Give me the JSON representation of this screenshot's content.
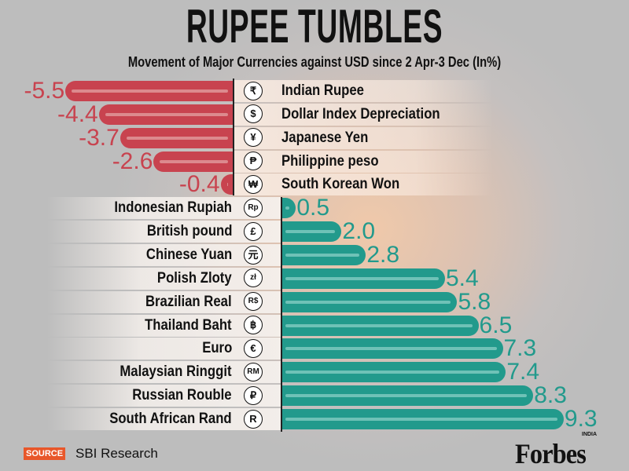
{
  "chart_data": {
    "type": "bar",
    "orientation": "horizontal",
    "title": "RUPEE TUMBLES",
    "subtitle": "Movement of Major Currencies against USD since 2 Apr-3 Dec (In%)",
    "categories": [
      "Indian Rupee",
      "Dollar Index Depreciation",
      "Japanese Yen",
      "Philippine peso",
      "South Korean Won",
      "Indonesian Rupiah",
      "British pound",
      "Chinese Yuan",
      "Polish Zloty",
      "Brazilian Real",
      "Thailand Baht",
      "Euro",
      "Malaysian Ringgit",
      "Russian Rouble",
      "South African Rand"
    ],
    "values": [
      -5.5,
      -4.4,
      -3.7,
      -2.6,
      -0.4,
      0.5,
      2.0,
      2.8,
      5.4,
      5.8,
      6.5,
      7.3,
      7.4,
      8.3,
      9.3
    ],
    "value_labels": [
      "-5.5",
      "-4.4",
      "-3.7",
      "-2.6",
      "-0.4",
      "0.5",
      "2.0",
      "2.8",
      "5.4",
      "5.8",
      "6.5",
      "7.3",
      "7.4",
      "8.3",
      "9.3"
    ],
    "symbols": [
      "₹",
      "$",
      "¥",
      "₱",
      "₩",
      "Rp",
      "£",
      "元",
      "zł",
      "R$",
      "฿",
      "€",
      "RM",
      "₽",
      "R"
    ],
    "xlim": [
      -5.5,
      9.3
    ],
    "grid": false,
    "colors": {
      "negative": "#c8434f",
      "positive": "#229a8c"
    }
  },
  "source": {
    "badge": "SOURCE",
    "text": "SBI Research"
  },
  "logo": {
    "text": "Forbes",
    "sub": "INDIA"
  }
}
